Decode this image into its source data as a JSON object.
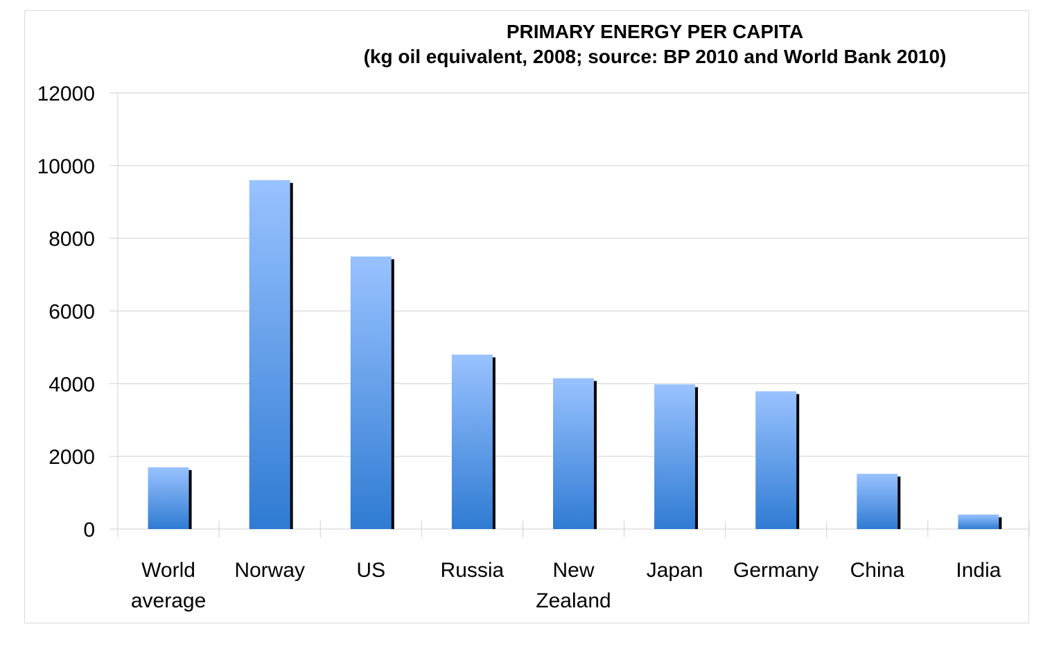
{
  "chart_data": {
    "type": "bar",
    "title": "PRIMARY ENERGY PER CAPITA",
    "subtitle": "(kg oil equivalent, 2008; source: BP 2010 and World Bank 2010)",
    "categories": [
      [
        "World",
        "average"
      ],
      [
        "Norway"
      ],
      [
        "US"
      ],
      [
        "Russia"
      ],
      [
        "New",
        "Zealand"
      ],
      [
        "Japan"
      ],
      [
        "Germany"
      ],
      [
        "China"
      ],
      [
        "India"
      ]
    ],
    "values": [
      1700,
      9600,
      7500,
      4800,
      4150,
      3980,
      3790,
      1520,
      400
    ],
    "ylim": [
      0,
      12000
    ],
    "yticks": [
      "0",
      "2000",
      "4000",
      "6000",
      "8000",
      "10000",
      "12000"
    ],
    "ytick_values": [
      0,
      2000,
      4000,
      6000,
      8000,
      10000,
      12000
    ],
    "xlabel": "",
    "ylabel": "",
    "grid": true,
    "bar_color_top": "#99c2ff",
    "bar_color_bottom": "#2f7bd3",
    "shadow_color": "#000000",
    "grid_color": "#d0d0d0"
  }
}
